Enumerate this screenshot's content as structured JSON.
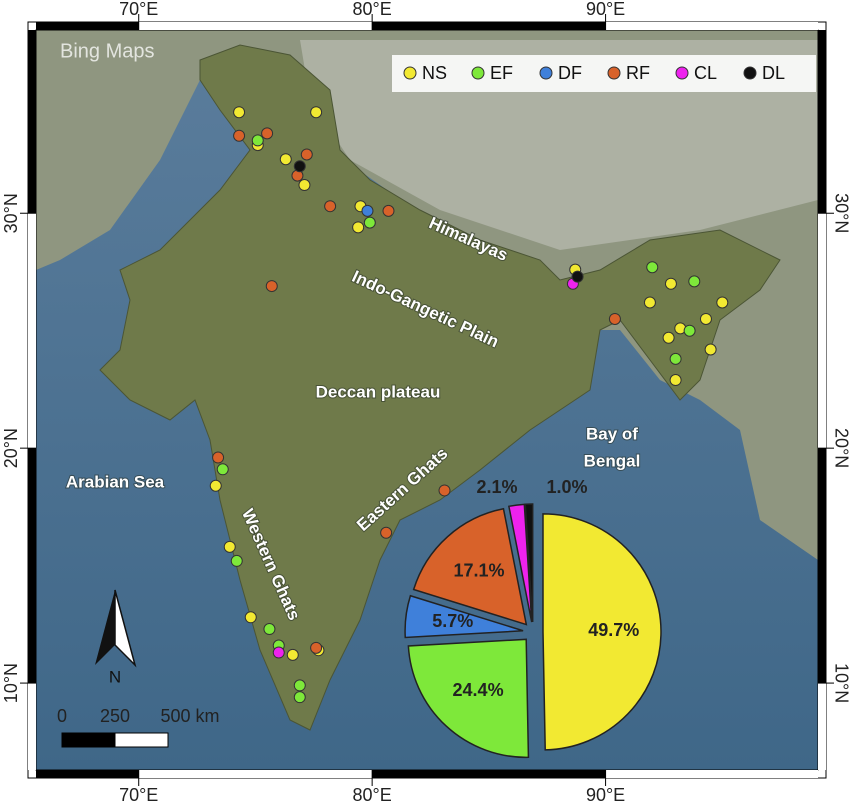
{
  "chart_data": {
    "type": "pie",
    "categories": [
      "NS",
      "EF",
      "DF",
      "RF",
      "CL",
      "DL"
    ],
    "colors": [
      "#f2e932",
      "#7ee83a",
      "#3f80da",
      "#d8622a",
      "#ee22ee",
      "#111111"
    ],
    "values": [
      49.7,
      24.4,
      5.7,
      17.1,
      2.1,
      1.0
    ],
    "value_labels": [
      "49.7%",
      "24.4%",
      "5.7%",
      "17.1%",
      "2.1%",
      "1.0%"
    ]
  },
  "map": {
    "attribution": "Bing Maps",
    "lon_range": [
      65.6,
      99.1
    ],
    "lat_range": [
      6.3,
      37.8
    ],
    "lon_ticks": [
      {
        "value": 70,
        "label": "70°E"
      },
      {
        "value": 80,
        "label": "80°E"
      },
      {
        "value": 90,
        "label": "90°E"
      }
    ],
    "lat_ticks": [
      {
        "value": 30,
        "label": "30°N"
      },
      {
        "value": 20,
        "label": "20°N"
      },
      {
        "value": 10,
        "label": "10°N"
      }
    ],
    "labels": [
      "Himalayas",
      "Indo-Gangetic Plain",
      "Deccan plateau",
      "Eastern Ghats",
      "Western Ghats",
      "Arabian Sea",
      [
        "Bay of",
        "Bengal"
      ]
    ],
    "north": "N",
    "scale_bar": [
      0,
      250,
      {
        "value": 500,
        "label": "500 km"
      }
    ],
    "points": [
      {
        "lon": 74.3,
        "lat": 34.3,
        "class": "NS"
      },
      {
        "lon": 77.6,
        "lat": 34.3,
        "class": "NS"
      },
      {
        "lon": 75.1,
        "lat": 32.9,
        "class": "NS"
      },
      {
        "lon": 76.3,
        "lat": 32.3,
        "class": "NS"
      },
      {
        "lon": 77.1,
        "lat": 31.2,
        "class": "NS"
      },
      {
        "lon": 79.5,
        "lat": 30.3,
        "class": "NS"
      },
      {
        "lon": 79.4,
        "lat": 29.4,
        "class": "NS"
      },
      {
        "lon": 88.7,
        "lat": 27.6,
        "class": "NS"
      },
      {
        "lon": 91.9,
        "lat": 26.2,
        "class": "NS"
      },
      {
        "lon": 92.8,
        "lat": 27.0,
        "class": "NS"
      },
      {
        "lon": 95.0,
        "lat": 26.2,
        "class": "NS"
      },
      {
        "lon": 94.3,
        "lat": 25.5,
        "class": "NS"
      },
      {
        "lon": 93.2,
        "lat": 25.1,
        "class": "NS"
      },
      {
        "lon": 92.7,
        "lat": 24.7,
        "class": "NS"
      },
      {
        "lon": 94.5,
        "lat": 24.2,
        "class": "NS"
      },
      {
        "lon": 93.0,
        "lat": 22.9,
        "class": "NS"
      },
      {
        "lon": 74.8,
        "lat": 12.8,
        "class": "NS"
      },
      {
        "lon": 76.6,
        "lat": 11.2,
        "class": "NS"
      },
      {
        "lon": 73.3,
        "lat": 18.4,
        "class": "NS"
      },
      {
        "lon": 73.9,
        "lat": 15.8,
        "class": "NS"
      },
      {
        "lon": 77.7,
        "lat": 11.4,
        "class": "NS"
      },
      {
        "lon": 75.1,
        "lat": 33.1,
        "class": "EF"
      },
      {
        "lon": 79.9,
        "lat": 29.6,
        "class": "EF"
      },
      {
        "lon": 92.0,
        "lat": 27.7,
        "class": "EF"
      },
      {
        "lon": 93.8,
        "lat": 27.1,
        "class": "EF"
      },
      {
        "lon": 93.6,
        "lat": 25.0,
        "class": "EF"
      },
      {
        "lon": 93.0,
        "lat": 23.8,
        "class": "EF"
      },
      {
        "lon": 73.6,
        "lat": 19.1,
        "class": "EF"
      },
      {
        "lon": 74.2,
        "lat": 15.2,
        "class": "EF"
      },
      {
        "lon": 75.6,
        "lat": 12.3,
        "class": "EF"
      },
      {
        "lon": 76.0,
        "lat": 11.6,
        "class": "EF"
      },
      {
        "lon": 76.9,
        "lat": 9.9,
        "class": "EF"
      },
      {
        "lon": 76.9,
        "lat": 9.4,
        "class": "EF"
      },
      {
        "lon": 79.8,
        "lat": 30.1,
        "class": "DF"
      },
      {
        "lon": 74.3,
        "lat": 33.3,
        "class": "RF"
      },
      {
        "lon": 75.5,
        "lat": 33.4,
        "class": "RF"
      },
      {
        "lon": 77.2,
        "lat": 32.5,
        "class": "RF"
      },
      {
        "lon": 76.8,
        "lat": 31.6,
        "class": "RF"
      },
      {
        "lon": 78.2,
        "lat": 30.3,
        "class": "RF"
      },
      {
        "lon": 80.7,
        "lat": 30.1,
        "class": "RF"
      },
      {
        "lon": 75.7,
        "lat": 26.9,
        "class": "RF"
      },
      {
        "lon": 90.4,
        "lat": 25.5,
        "class": "RF"
      },
      {
        "lon": 73.4,
        "lat": 19.6,
        "class": "RF"
      },
      {
        "lon": 83.1,
        "lat": 18.2,
        "class": "RF"
      },
      {
        "lon": 80.6,
        "lat": 16.4,
        "class": "RF"
      },
      {
        "lon": 77.6,
        "lat": 11.5,
        "class": "RF"
      },
      {
        "lon": 88.6,
        "lat": 27.0,
        "class": "CL"
      },
      {
        "lon": 76.0,
        "lat": 11.3,
        "class": "CL"
      },
      {
        "lon": 76.9,
        "lat": 32.0,
        "class": "DL"
      },
      {
        "lon": 88.8,
        "lat": 27.3,
        "class": "DL"
      }
    ]
  }
}
